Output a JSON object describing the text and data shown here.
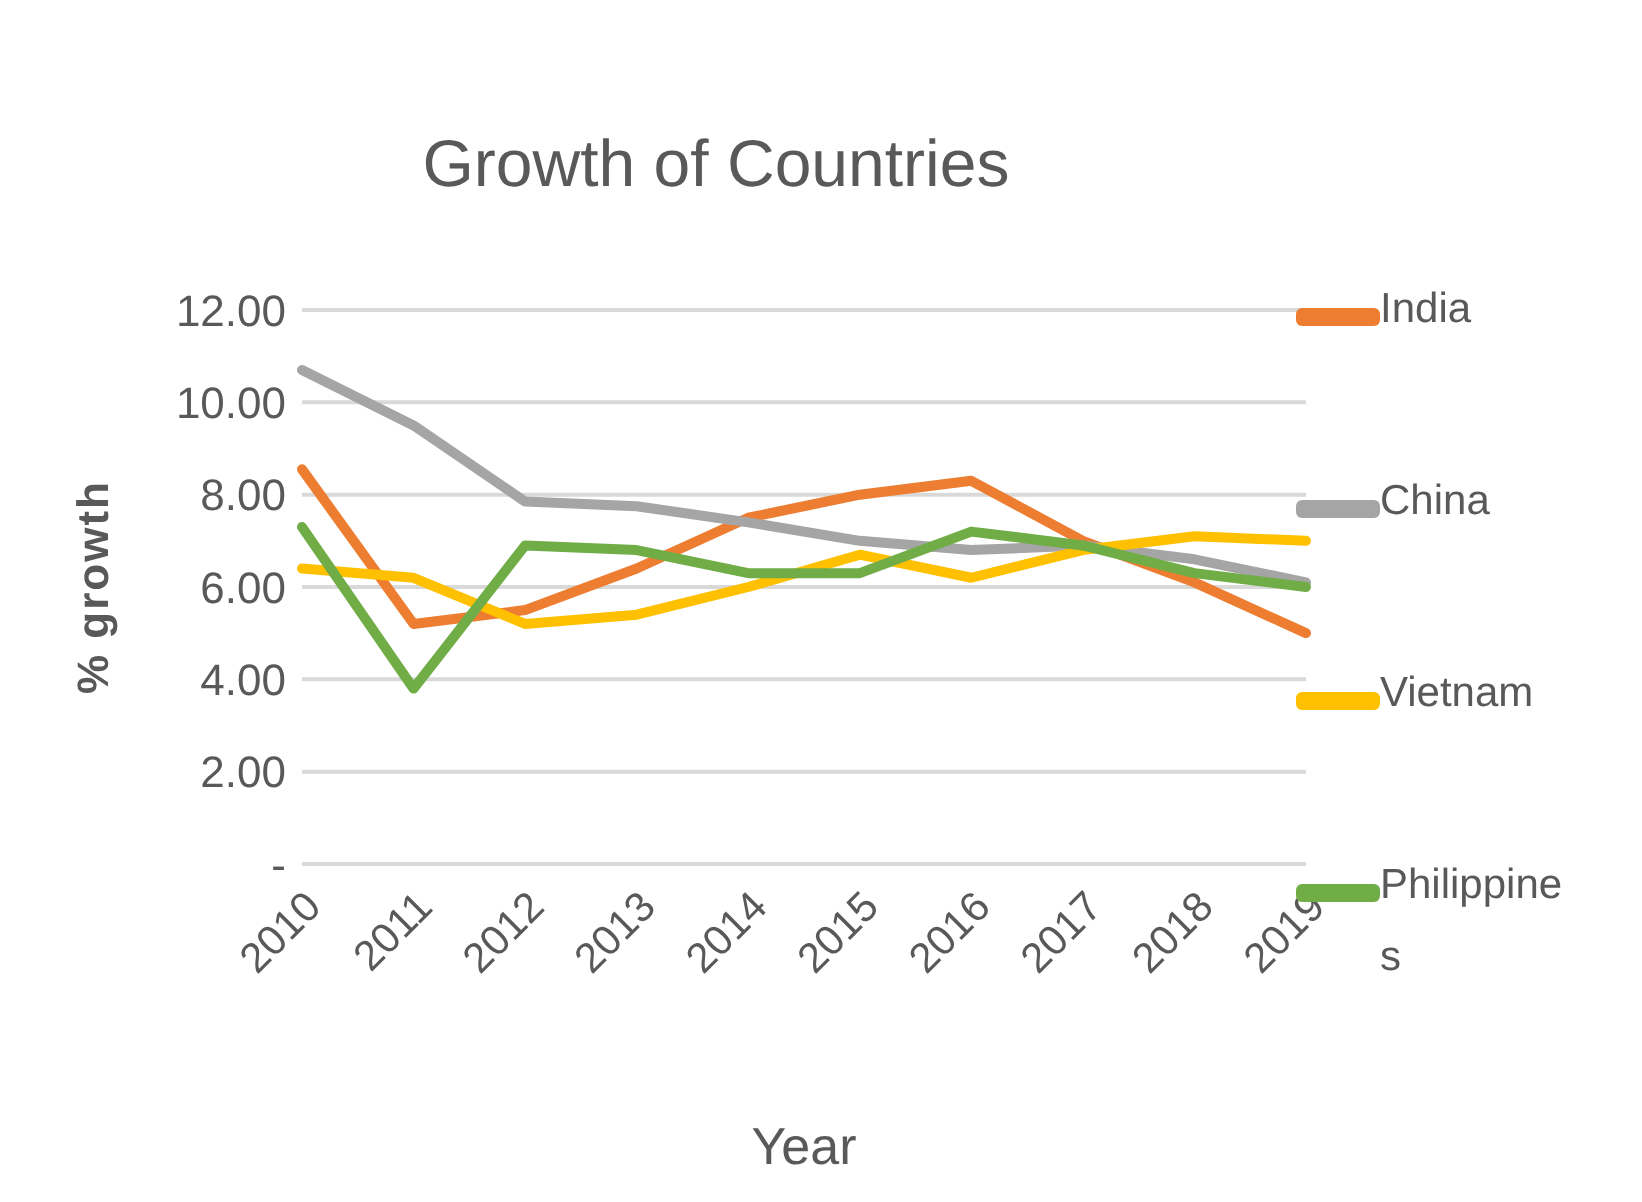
{
  "chart_data": {
    "type": "line",
    "title": "Growth of Countries",
    "xlabel": "Year",
    "ylabel": "% growth",
    "categories": [
      "2010",
      "2011",
      "2012",
      "2013",
      "2014",
      "2015",
      "2016",
      "2017",
      "2018",
      "2019"
    ],
    "series": [
      {
        "name": "India",
        "color": "#ed7d31",
        "values": [
          8.55,
          5.2,
          5.5,
          6.4,
          7.5,
          8.0,
          8.3,
          7.0,
          6.1,
          5.0
        ]
      },
      {
        "name": "China",
        "color": "#a5a5a5",
        "values": [
          10.7,
          9.5,
          7.85,
          7.75,
          7.4,
          7.0,
          6.8,
          6.9,
          6.6,
          6.1
        ]
      },
      {
        "name": "Vietnam",
        "color": "#ffc000",
        "values": [
          6.4,
          6.2,
          5.2,
          5.4,
          6.0,
          6.7,
          6.2,
          6.8,
          7.1,
          7.0
        ]
      },
      {
        "name": "Philippines",
        "color": "#70ad47",
        "values": [
          7.3,
          3.8,
          6.9,
          6.8,
          6.3,
          6.3,
          7.2,
          6.9,
          6.3,
          6.0
        ]
      }
    ],
    "ylim": [
      0,
      12
    ],
    "yticks": [
      {
        "value": 0,
        "label": "-"
      },
      {
        "value": 2,
        "label": "2.00"
      },
      {
        "value": 4,
        "label": "4.00"
      },
      {
        "value": 6,
        "label": "6.00"
      },
      {
        "value": 8,
        "label": "8.00"
      },
      {
        "value": 10,
        "label": "10.00"
      },
      {
        "value": 12,
        "label": "12.00"
      }
    ],
    "grid": "y",
    "legend": "right",
    "marker": "none",
    "line_style": "solid"
  }
}
